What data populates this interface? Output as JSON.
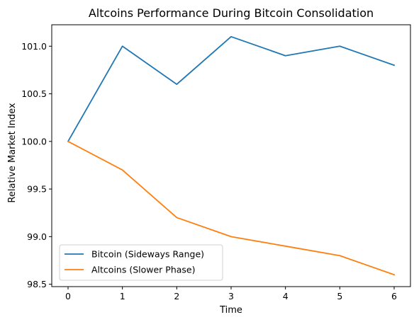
{
  "chart_data": {
    "type": "line",
    "title": "Altcoins Performance During Bitcoin Consolidation",
    "xlabel": "Time",
    "ylabel": "Relative Market Index",
    "x": [
      0,
      1,
      2,
      3,
      4,
      5,
      6
    ],
    "xticks": [
      "0",
      "1",
      "2",
      "3",
      "4",
      "5",
      "6"
    ],
    "yticks": [
      "98.5",
      "99.0",
      "99.5",
      "100.0",
      "100.5",
      "101.0"
    ],
    "xlim": [
      -0.3,
      6.3
    ],
    "ylim": [
      98.475,
      101.225
    ],
    "grid": false,
    "legend_position": "lower-left",
    "series": [
      {
        "name": "Bitcoin (Sideways Range)",
        "color": "#1f77b4",
        "values": [
          100.0,
          101.0,
          100.6,
          101.1,
          100.9,
          101.0,
          100.8
        ]
      },
      {
        "name": "Altcoins (Slower Phase)",
        "color": "#ff7f0e",
        "values": [
          100.0,
          99.7,
          99.2,
          99.0,
          98.9,
          98.8,
          98.6
        ]
      }
    ]
  }
}
